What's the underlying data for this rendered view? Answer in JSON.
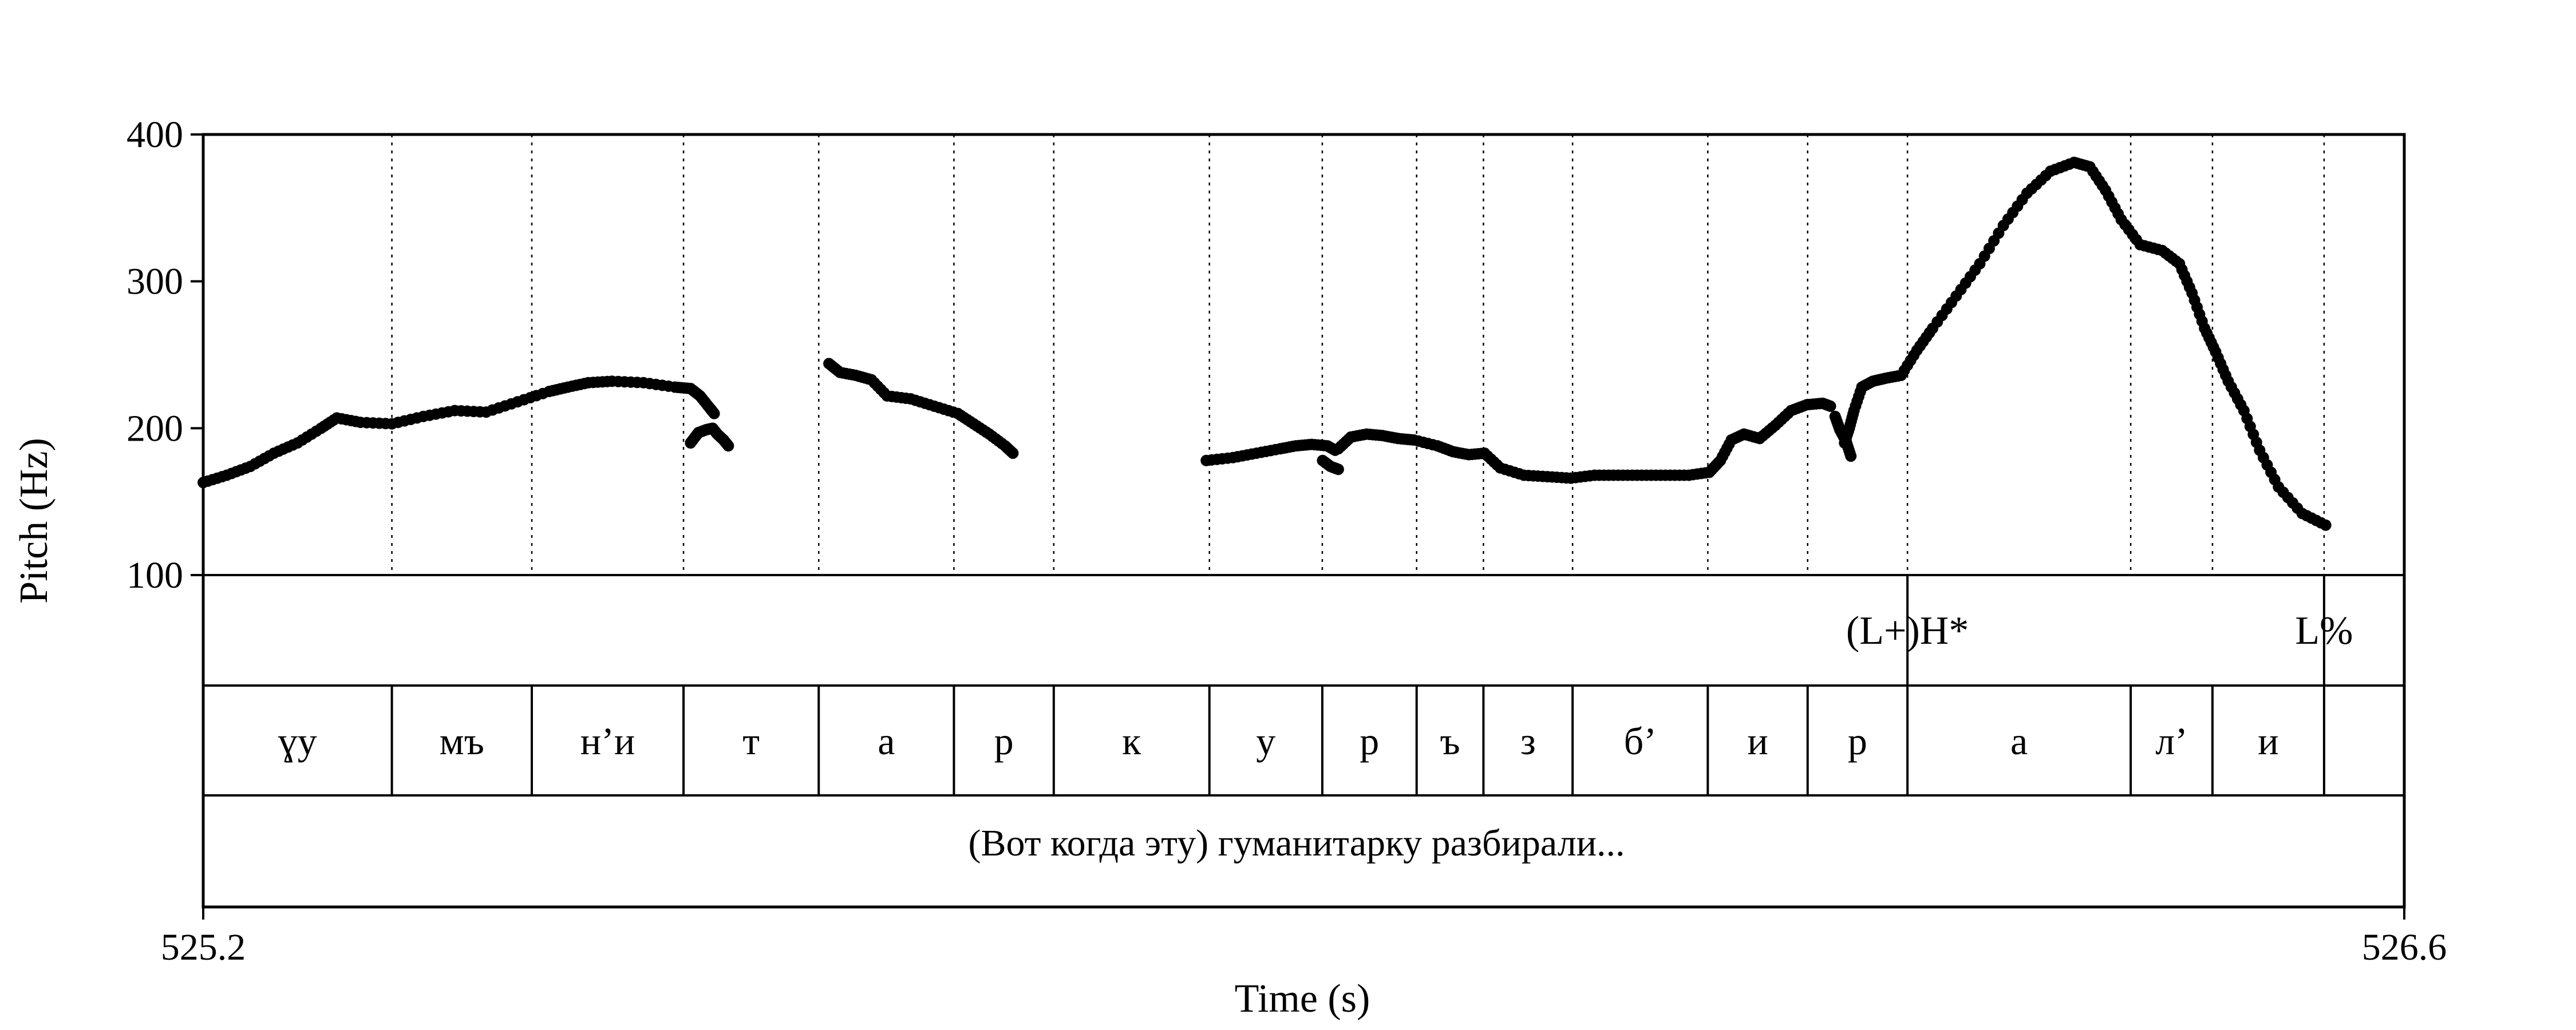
{
  "chart_data": {
    "type": "scatter",
    "xlabel": "Time (s)",
    "ylabel": "Pitch (Hz)",
    "xlim": [
      525.2,
      526.6
    ],
    "ylim": [
      100,
      400
    ],
    "xticks": [
      "525.2",
      "526.6"
    ],
    "yticks": [
      "100",
      "200",
      "300",
      "400"
    ],
    "grid": "vertical dotted at segment boundaries",
    "boundaries": [
      525.32,
      525.409,
      525.5055,
      525.5915,
      525.6775,
      525.741,
      525.84,
      525.9118,
      525.9718,
      526.0143,
      526.071,
      526.157,
      526.2205,
      526.284,
      526.426,
      526.478,
      526.549
    ],
    "tones": [
      {
        "label": "(L+)H*",
        "x": 526.284
      },
      {
        "label": "L%",
        "x": 526.549
      }
    ],
    "segments": [
      {
        "label": "ɣу",
        "start": 525.2,
        "end": 525.32
      },
      {
        "label": "мъ",
        "start": 525.32,
        "end": 525.409
      },
      {
        "label": "н’и",
        "start": 525.409,
        "end": 525.5055
      },
      {
        "label": "т",
        "start": 525.5055,
        "end": 525.5915
      },
      {
        "label": "а",
        "start": 525.5915,
        "end": 525.6775
      },
      {
        "label": "р",
        "start": 525.6775,
        "end": 525.741
      },
      {
        "label": "к",
        "start": 525.741,
        "end": 525.84
      },
      {
        "label": "у",
        "start": 525.84,
        "end": 525.9118
      },
      {
        "label": "р",
        "start": 525.9118,
        "end": 525.9718
      },
      {
        "label": "ъ",
        "start": 525.9718,
        "end": 526.0143
      },
      {
        "label": "з",
        "start": 526.0143,
        "end": 526.071
      },
      {
        "label": "б’",
        "start": 526.071,
        "end": 526.157
      },
      {
        "label": "и",
        "start": 526.157,
        "end": 526.2205
      },
      {
        "label": "р",
        "start": 526.2205,
        "end": 526.284
      },
      {
        "label": "а",
        "start": 526.284,
        "end": 526.426
      },
      {
        "label": "л’",
        "start": 526.426,
        "end": 526.478
      },
      {
        "label": "и",
        "start": 526.478,
        "end": 526.549
      }
    ],
    "gloss": "(Вот когда эту) гуманитарку разбирали...",
    "series": [
      {
        "x": [
          525.2,
          525.215,
          525.23,
          525.245,
          525.26,
          525.275,
          525.285,
          525.3,
          525.32,
          525.34,
          525.36,
          525.38,
          525.4,
          525.42,
          525.432,
          525.445,
          525.46,
          525.48,
          525.5,
          525.51,
          525.516,
          525.522,
          525.525
        ],
        "y": [
          163,
          168,
          174,
          183,
          190,
          200,
          207,
          204,
          203,
          208,
          212,
          211,
          218,
          225,
          228,
          231,
          232,
          231,
          228,
          227,
          222,
          214,
          210
        ]
      },
      {
        "x": [
          525.51,
          525.515,
          525.52,
          525.524,
          525.527,
          525.531,
          525.534
        ],
        "y": [
          190,
          197,
          199,
          200,
          196,
          192,
          188
        ]
      },
      {
        "x": [
          525.598,
          525.605,
          525.615,
          525.625,
          525.635,
          525.65,
          525.665,
          525.68,
          525.69,
          525.7,
          525.71,
          525.715
        ],
        "y": [
          244,
          238,
          236,
          233,
          222,
          220,
          215,
          210,
          203,
          196,
          188,
          183
        ]
      },
      {
        "x": [
          525.838,
          525.855,
          525.87,
          525.885,
          525.895,
          525.905,
          525.915,
          525.92
        ],
        "y": [
          178,
          180,
          183,
          186,
          188,
          189,
          188,
          185
        ]
      },
      {
        "x": [
          525.912,
          525.917,
          525.922
        ],
        "y": [
          178,
          174,
          172
        ]
      },
      {
        "x": [
          525.922,
          525.93,
          525.94,
          525.95,
          525.96,
          525.97,
          525.985,
          525.995,
          526.005,
          526.015,
          526.025,
          526.04,
          526.055,
          526.07,
          526.085,
          526.1,
          526.115,
          526.13,
          526.145,
          526.158,
          526.165,
          526.172,
          526.18,
          526.19,
          526.2,
          526.21,
          526.22,
          526.23,
          526.235
        ],
        "y": [
          186,
          194,
          196,
          195,
          193,
          192,
          188,
          184,
          182,
          183,
          173,
          168,
          167,
          166,
          168,
          168,
          168,
          168,
          168,
          170,
          178,
          192,
          196,
          193,
          202,
          212,
          216,
          217,
          215
        ]
      },
      {
        "x": [
          526.238,
          526.241,
          526.245,
          526.248
        ],
        "y": [
          208,
          199,
          191,
          181
        ]
      },
      {
        "x": [
          526.244,
          526.247,
          526.25,
          526.255,
          526.262,
          526.27,
          526.28,
          526.29,
          526.3,
          526.315,
          526.33,
          526.345,
          526.36,
          526.375,
          526.39,
          526.4,
          526.41,
          526.42,
          526.432,
          526.446,
          526.457,
          526.465,
          526.473,
          526.48,
          526.488,
          526.498,
          526.508,
          526.52,
          526.535,
          526.55
        ],
        "y": [
          190,
          200,
          212,
          228,
          232,
          234,
          236,
          253,
          268,
          290,
          312,
          338,
          360,
          375,
          381,
          378,
          362,
          342,
          325,
          321,
          312,
          292,
          268,
          252,
          232,
          212,
          185,
          160,
          142,
          134
        ]
      }
    ]
  }
}
